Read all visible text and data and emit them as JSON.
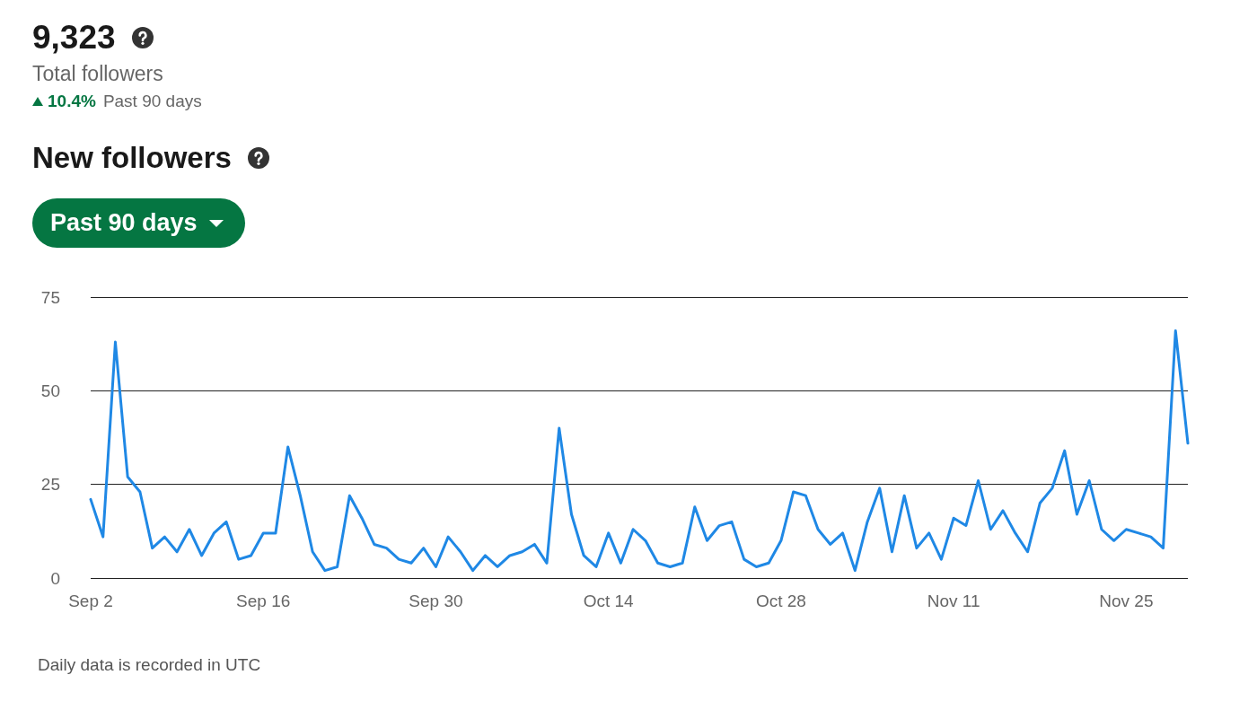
{
  "chart_data": {
    "type": "line",
    "title": "New followers",
    "annotations": [
      "9,323",
      "Total followers",
      "10.4%",
      "Past 90 days",
      "Past 90 days",
      "Daily data is recorded in UTC"
    ],
    "x": [
      "--09-02",
      "--09-03",
      "--09-04",
      "--09-05",
      "--09-06",
      "--09-07",
      "--09-08",
      "--09-09",
      "--09-10",
      "--09-11",
      "--09-12",
      "--09-13",
      "--09-14",
      "--09-15",
      "--09-16",
      "--09-17",
      "--09-18",
      "--09-19",
      "--09-20",
      "--09-21",
      "--09-22",
      "--09-23",
      "--09-24",
      "--09-25",
      "--09-26",
      "--09-27",
      "--09-28",
      "--09-29",
      "--09-30",
      "--10-01",
      "--10-02",
      "--10-03",
      "--10-04",
      "--10-05",
      "--10-06",
      "--10-07",
      "--10-08",
      "--10-09",
      "--10-10",
      "--10-11",
      "--10-12",
      "--10-13",
      "--10-14",
      "--10-15",
      "--10-16",
      "--10-17",
      "--10-18",
      "--10-19",
      "--10-20",
      "--10-21",
      "--10-22",
      "--10-23",
      "--10-24",
      "--10-25",
      "--10-26",
      "--10-27",
      "--10-28",
      "--10-29",
      "--10-30",
      "--10-31",
      "--11-01",
      "--11-02",
      "--11-03",
      "--11-04",
      "--11-05",
      "--11-06",
      "--11-07",
      "--11-08",
      "--11-09",
      "--11-10",
      "--11-11",
      "--11-12",
      "--11-13",
      "--11-14",
      "--11-15",
      "--11-16",
      "--11-17",
      "--11-18",
      "--11-19",
      "--11-20",
      "--11-21",
      "--11-22",
      "--11-23",
      "--11-24",
      "--11-25",
      "--11-26",
      "--11-27",
      "--11-28",
      "--11-29",
      "--11-30"
    ],
    "values": [
      21,
      11,
      63,
      27,
      23,
      8,
      11,
      7,
      13,
      6,
      12,
      15,
      5,
      6,
      12,
      12,
      35,
      22,
      7,
      2,
      3,
      22,
      16,
      9,
      8,
      5,
      4,
      8,
      3,
      11,
      7,
      2,
      6,
      3,
      6,
      7,
      9,
      4,
      40,
      17,
      6,
      3,
      12,
      4,
      13,
      10,
      4,
      3,
      4,
      19,
      10,
      14,
      15,
      5,
      3,
      4,
      10,
      23,
      22,
      13,
      9,
      12,
      2,
      15,
      24,
      7,
      22,
      8,
      12,
      5,
      16,
      14,
      26,
      13,
      18,
      12,
      7,
      20,
      24,
      34,
      17,
      26,
      13,
      10,
      13,
      12,
      11,
      8,
      66,
      36
    ],
    "color": "#1f88e5",
    "xlim": [
      "--09-02",
      "--11-30"
    ],
    "xticks": [
      {
        "value": "--09-02",
        "label": "Sep 2"
      },
      {
        "value": "--09-16",
        "label": "Sep 16"
      },
      {
        "value": "--09-30",
        "label": "Sep 30"
      },
      {
        "value": "--10-14",
        "label": "Oct 14"
      },
      {
        "value": "--10-28",
        "label": "Oct 28"
      },
      {
        "value": "--11-11",
        "label": "Nov 11"
      },
      {
        "value": "--11-25",
        "label": "Nov 25"
      }
    ],
    "ylim": [
      0,
      75
    ],
    "yticks": [
      0,
      25,
      50,
      75
    ],
    "grid": "y"
  }
}
